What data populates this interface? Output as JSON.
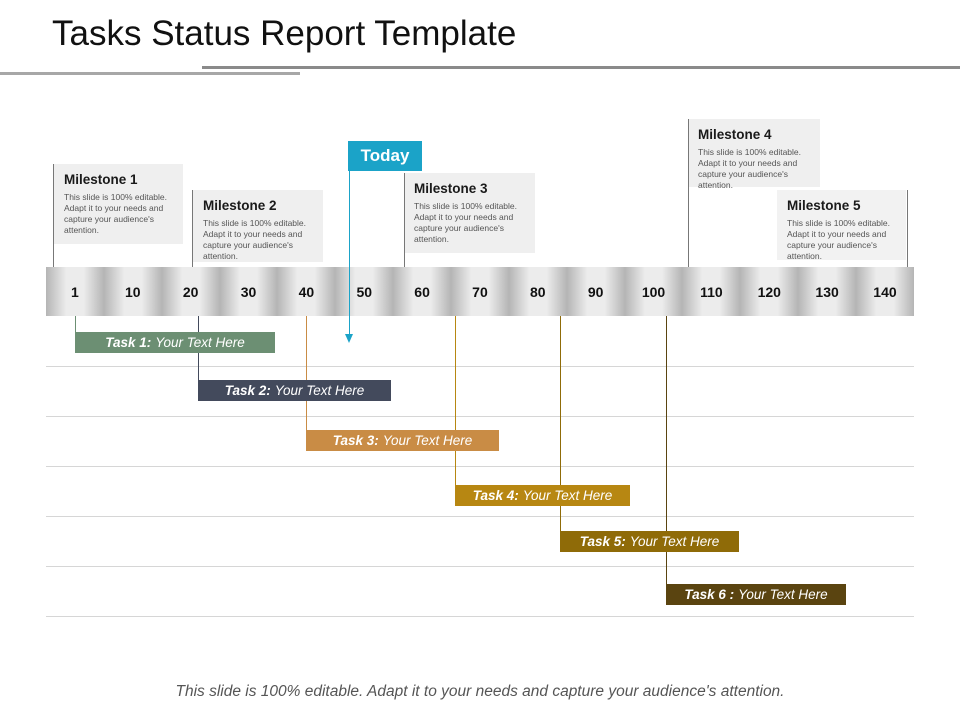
{
  "title": "Tasks Status Report Template",
  "scale": [
    "1",
    "10",
    "20",
    "30",
    "40",
    "50",
    "60",
    "70",
    "80",
    "90",
    "100",
    "110",
    "120",
    "130",
    "140"
  ],
  "milestones": [
    {
      "title": "Milestone 1",
      "text": "This slide is 100% editable. Adapt it to your needs and capture your audience's attention."
    },
    {
      "title": "Milestone 2",
      "text": "This slide is 100% editable. Adapt it to your needs and capture your audience's attention."
    },
    {
      "title": "Milestone 3",
      "text": "This slide is 100% editable. Adapt it to your needs and capture your audience's attention."
    },
    {
      "title": "Milestone 4",
      "text": "This slide is 100% editable. Adapt it to your needs and capture your audience's attention."
    },
    {
      "title": "Milestone 5",
      "text": "This slide is 100% editable. Adapt it to your needs and capture your audience's attention."
    }
  ],
  "today_label": "Today",
  "tasks": [
    {
      "label": "Task 1:",
      "text": "Your Text Here",
      "color": "#6c8f73"
    },
    {
      "label": "Task 2:",
      "text": "Your Text Here",
      "color": "#434a5c"
    },
    {
      "label": "Task 3:",
      "text": "Your Text Here",
      "color": "#c98c45"
    },
    {
      "label": "Task 4:",
      "text": "Your Text Here",
      "color": "#b78712"
    },
    {
      "label": "Task 5:",
      "text": "Your Text Here",
      "color": "#8f6b08"
    },
    {
      "label": "Task 6 :",
      "text": "Your Text Here",
      "color": "#5a4410"
    }
  ],
  "footer": "This slide is 100% editable. Adapt it to your needs and capture your audience's attention."
}
